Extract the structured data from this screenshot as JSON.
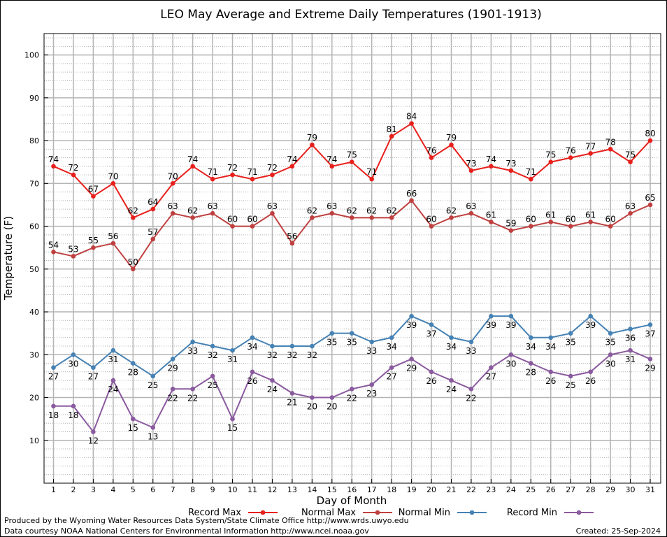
{
  "chart_data": {
    "type": "line",
    "title": "LEO May Average and Extreme Daily Temperatures (1901-1913)",
    "xlabel": "Day of Month",
    "ylabel": "Temperature (F)",
    "ylim": [
      0,
      105
    ],
    "yticks": [
      10,
      20,
      30,
      40,
      50,
      60,
      70,
      80,
      90,
      100
    ],
    "grid": true,
    "legend": "bottom",
    "categories": [
      1,
      2,
      3,
      4,
      5,
      6,
      7,
      8,
      9,
      10,
      11,
      12,
      13,
      14,
      15,
      16,
      17,
      18,
      19,
      20,
      21,
      22,
      23,
      24,
      25,
      26,
      27,
      28,
      29,
      30,
      31
    ],
    "series": [
      {
        "name": "Record Max",
        "color": "#e8201c",
        "values": [
          74,
          72,
          67,
          70,
          62,
          64,
          70,
          74,
          71,
          72,
          71,
          72,
          74,
          79,
          74,
          75,
          71,
          81,
          84,
          76,
          79,
          73,
          74,
          73,
          71,
          75,
          76,
          77,
          78,
          75,
          80
        ]
      },
      {
        "name": "Normal Max",
        "color": "#c04040",
        "values": [
          54,
          53,
          55,
          56,
          50,
          57,
          63,
          62,
          63,
          60,
          60,
          63,
          56,
          62,
          63,
          62,
          62,
          62,
          66,
          60,
          62,
          63,
          61,
          59,
          60,
          61,
          60,
          61,
          60,
          63,
          65
        ]
      },
      {
        "name": "Normal Min",
        "color": "#4682b4",
        "values": [
          27,
          30,
          27,
          31,
          28,
          25,
          29,
          33,
          32,
          31,
          34,
          32,
          32,
          32,
          35,
          35,
          33,
          34,
          39,
          37,
          34,
          33,
          39,
          39,
          34,
          34,
          35,
          39,
          35,
          36,
          37
        ]
      },
      {
        "name": "Record Min",
        "color": "#8a5a9e",
        "values": [
          18,
          18,
          12,
          24,
          15,
          13,
          22,
          22,
          25,
          15,
          26,
          24,
          21,
          20,
          20,
          22,
          23,
          27,
          29,
          26,
          24,
          22,
          27,
          30,
          28,
          26,
          25,
          26,
          30,
          31,
          29
        ]
      }
    ]
  },
  "footer": {
    "produced_by": "Produced by the Wyoming Water Resources Data System/State Climate Office http://www.wrds.uwyo.edu",
    "courtesy": "Data courtesy NOAA National Centers for Environmental Information http://www.ncei.noaa.gov",
    "created": "Created:  25-Sep-2024"
  }
}
